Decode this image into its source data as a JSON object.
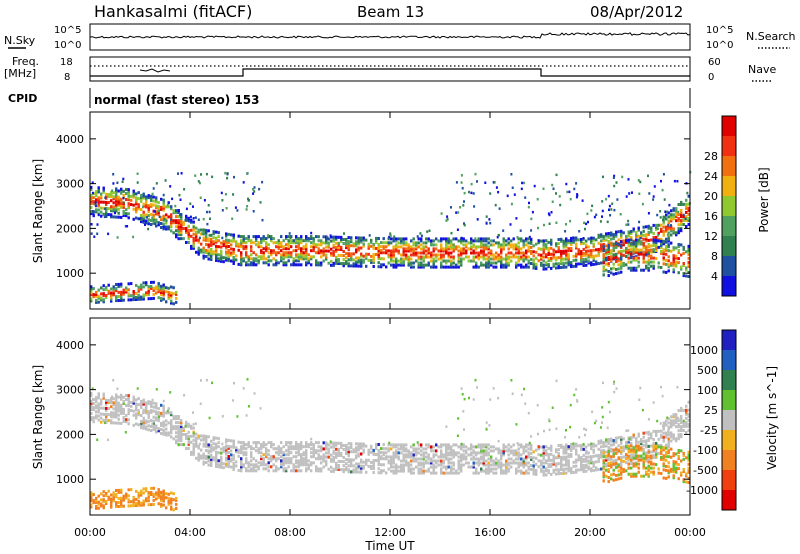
{
  "header": {
    "station": "Hankasalmi (fitACF)",
    "beam": "Beam 13",
    "date": "08/Apr/2012"
  },
  "noise_panel": {
    "left_label": "N.Sky",
    "right_label": "N.Search",
    "tick_top": "10^5",
    "tick_bottom": "10^0"
  },
  "freq_panel": {
    "left_label_line1": "Freq.",
    "left_label_line2": "[MHz]",
    "left_tick_top": "18",
    "left_tick_bottom": "8",
    "right_tick_top": "60",
    "right_tick_bottom": "0",
    "right_label": "Nave"
  },
  "cpid_panel": {
    "label": "CPID",
    "mode_text": "normal (fast stereo) 153"
  },
  "colors": {
    "power_scale": [
      "#1010e0",
      "#2050a0",
      "#308050",
      "#50a060",
      "#90c830",
      "#f0b010",
      "#f07010",
      "#f03010",
      "#e00000"
    ],
    "velocity_scale": [
      "#2020c0",
      "#2060c0",
      "#308050",
      "#60c030",
      "#c0c0c0",
      "#f0b020",
      "#f08020",
      "#f04010",
      "#e00000"
    ],
    "ground_scatter": "#c0c0c0"
  },
  "chart_data": [
    {
      "type": "heatmap",
      "name": "power",
      "ylabel": "Slant Range [km]",
      "ylim": [
        200,
        4600
      ],
      "y_ticks": [
        "1000",
        "2000",
        "3000",
        "4000"
      ],
      "colorbar": {
        "label": "Power [dB]",
        "ticks": [
          "4",
          "8",
          "12",
          "16",
          "20",
          "24",
          "28"
        ]
      },
      "bands": [
        {
          "t": [
            0,
            1.5,
            3.0,
            4.5,
            6.0,
            9.0,
            12.0,
            15.0,
            17.5,
            18.0,
            20.0,
            22.5,
            24.0
          ],
          "r": [
            2650,
            2600,
            2350,
            1700,
            1550,
            1550,
            1500,
            1500,
            1500,
            1450,
            1550,
            1800,
            2500
          ],
          "width": 330,
          "density": 0.55
        },
        {
          "t": [
            0,
            1.0,
            2.5,
            3.5
          ],
          "r": [
            550,
            600,
            650,
            500
          ],
          "width": 180,
          "density": 0.5
        },
        {
          "t": [
            20.5,
            21.5,
            22.5,
            24.0
          ],
          "r": [
            1300,
            1450,
            1450,
            1300
          ],
          "width": 350,
          "density": 0.45
        }
      ]
    },
    {
      "type": "heatmap",
      "name": "velocity",
      "ylabel": "Slant Range [km]",
      "ylim": [
        200,
        4600
      ],
      "y_ticks": [
        "1000",
        "2000",
        "3000",
        "4000"
      ],
      "colorbar": {
        "label": "Velocity [m s^-1]",
        "ticks": [
          "1000",
          "500",
          "100",
          "25",
          "-25",
          "-100",
          "-500",
          "-1000"
        ]
      }
    }
  ],
  "x_axis": {
    "label": "Time UT",
    "ticks": [
      "00:00",
      "04:00",
      "08:00",
      "12:00",
      "16:00",
      "20:00",
      "00:00"
    ],
    "xlim": [
      0,
      24
    ]
  }
}
